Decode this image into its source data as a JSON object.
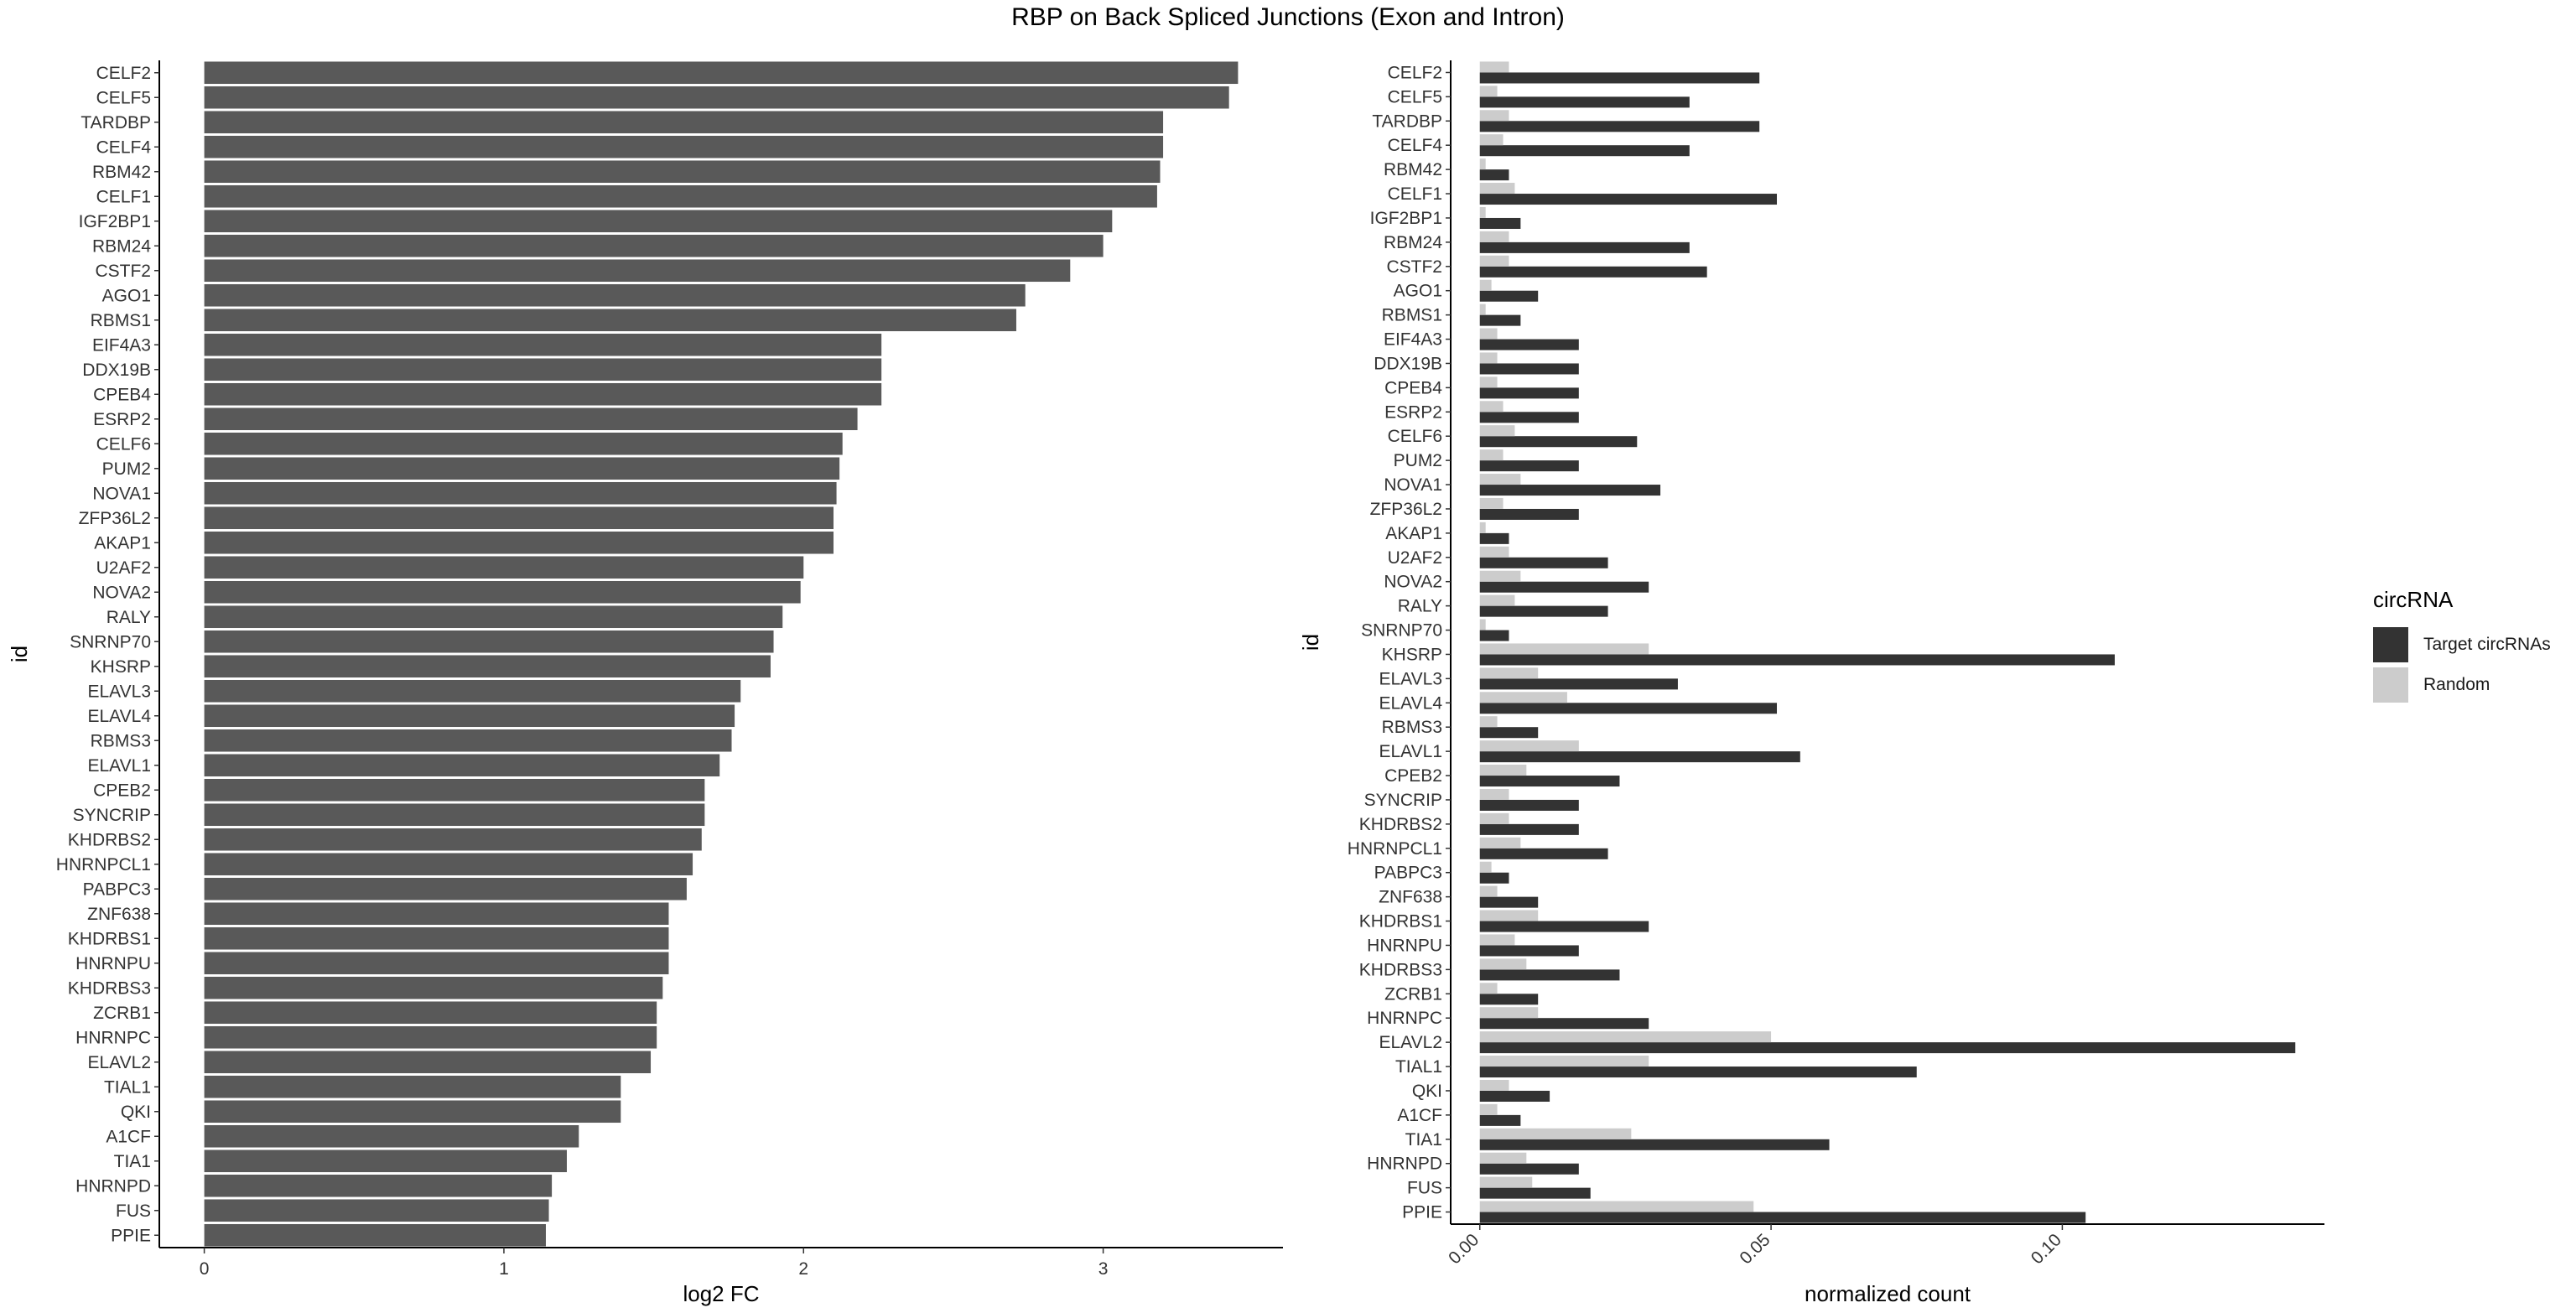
{
  "figure": {
    "title": "RBP on Back Spliced Junctions (Exon and Intron)",
    "legend_title": "circRNA",
    "legend_items": [
      {
        "label": "Target circRNAs",
        "color": "#333333"
      },
      {
        "label": "Random",
        "color": "#cccccc"
      }
    ]
  },
  "chart_data": [
    {
      "type": "bar",
      "orientation": "horizontal",
      "xlabel": "log2 FC",
      "ylabel": "id",
      "xlim": [
        -0.15,
        3.6
      ],
      "xticks": [
        0,
        1,
        2,
        3
      ],
      "xtick_labels": [
        "0",
        "1",
        "2",
        "3"
      ],
      "grid": false,
      "bar_color": "#595959",
      "categories": [
        "CELF2",
        "CELF5",
        "TARDBP",
        "CELF4",
        "RBM42",
        "CELF1",
        "IGF2BP1",
        "RBM24",
        "CSTF2",
        "AGO1",
        "RBMS1",
        "EIF4A3",
        "DDX19B",
        "CPEB4",
        "ESRP2",
        "CELF6",
        "PUM2",
        "NOVA1",
        "ZFP36L2",
        "AKAP1",
        "U2AF2",
        "NOVA2",
        "RALY",
        "SNRNP70",
        "KHSRP",
        "ELAVL3",
        "ELAVL4",
        "RBMS3",
        "ELAVL1",
        "CPEB2",
        "SYNCRIP",
        "KHDRBS2",
        "HNRNPCL1",
        "PABPC3",
        "ZNF638",
        "KHDRBS1",
        "HNRNPU",
        "KHDRBS3",
        "ZCRB1",
        "HNRNPC",
        "ELAVL2",
        "TIAL1",
        "QKI",
        "A1CF",
        "TIA1",
        "HNRNPD",
        "FUS",
        "PPIE"
      ],
      "values": [
        3.45,
        3.42,
        3.2,
        3.2,
        3.19,
        3.18,
        3.03,
        3.0,
        2.89,
        2.74,
        2.71,
        2.26,
        2.26,
        2.26,
        2.18,
        2.13,
        2.12,
        2.11,
        2.1,
        2.1,
        2.0,
        1.99,
        1.93,
        1.9,
        1.89,
        1.79,
        1.77,
        1.76,
        1.72,
        1.67,
        1.67,
        1.66,
        1.63,
        1.61,
        1.55,
        1.55,
        1.55,
        1.53,
        1.51,
        1.51,
        1.49,
        1.39,
        1.39,
        1.25,
        1.21,
        1.16,
        1.15,
        1.14
      ]
    },
    {
      "type": "bar",
      "orientation": "horizontal",
      "xlabel": "normalized count",
      "ylabel": "id",
      "xlim": [
        -0.005,
        0.145
      ],
      "xticks": [
        0,
        0.05,
        0.1
      ],
      "xtick_labels": [
        "0.00",
        "0.05",
        "0.10"
      ],
      "grid": false,
      "categories": [
        "CELF2",
        "CELF5",
        "TARDBP",
        "CELF4",
        "RBM42",
        "CELF1",
        "IGF2BP1",
        "RBM24",
        "CSTF2",
        "AGO1",
        "RBMS1",
        "EIF4A3",
        "DDX19B",
        "CPEB4",
        "ESRP2",
        "CELF6",
        "PUM2",
        "NOVA1",
        "ZFP36L2",
        "AKAP1",
        "U2AF2",
        "NOVA2",
        "RALY",
        "SNRNP70",
        "KHSRP",
        "ELAVL3",
        "ELAVL4",
        "RBMS3",
        "ELAVL1",
        "CPEB2",
        "SYNCRIP",
        "KHDRBS2",
        "HNRNPCL1",
        "PABPC3",
        "ZNF638",
        "KHDRBS1",
        "HNRNPU",
        "KHDRBS3",
        "ZCRB1",
        "HNRNPC",
        "ELAVL2",
        "TIAL1",
        "QKI",
        "A1CF",
        "TIA1",
        "HNRNPD",
        "FUS",
        "PPIE"
      ],
      "series": [
        {
          "name": "Target circRNAs",
          "color": "#333333",
          "values": [
            0.048,
            0.036,
            0.048,
            0.036,
            0.005,
            0.051,
            0.007,
            0.036,
            0.039,
            0.01,
            0.007,
            0.017,
            0.017,
            0.017,
            0.017,
            0.027,
            0.017,
            0.031,
            0.017,
            0.005,
            0.022,
            0.029,
            0.022,
            0.005,
            0.109,
            0.034,
            0.051,
            0.01,
            0.055,
            0.024,
            0.017,
            0.017,
            0.022,
            0.005,
            0.01,
            0.029,
            0.017,
            0.024,
            0.01,
            0.029,
            0.14,
            0.075,
            0.012,
            0.007,
            0.06,
            0.017,
            0.019,
            0.104
          ]
        },
        {
          "name": "Random",
          "color": "#cccccc",
          "values": [
            0.005,
            0.003,
            0.005,
            0.004,
            0.001,
            0.006,
            0.001,
            0.005,
            0.005,
            0.002,
            0.001,
            0.003,
            0.003,
            0.003,
            0.004,
            0.006,
            0.004,
            0.007,
            0.004,
            0.001,
            0.005,
            0.007,
            0.006,
            0.001,
            0.029,
            0.01,
            0.015,
            0.003,
            0.017,
            0.008,
            0.005,
            0.005,
            0.007,
            0.002,
            0.003,
            0.01,
            0.006,
            0.008,
            0.003,
            0.01,
            0.05,
            0.029,
            0.005,
            0.003,
            0.026,
            0.008,
            0.009,
            0.047
          ]
        }
      ]
    }
  ]
}
